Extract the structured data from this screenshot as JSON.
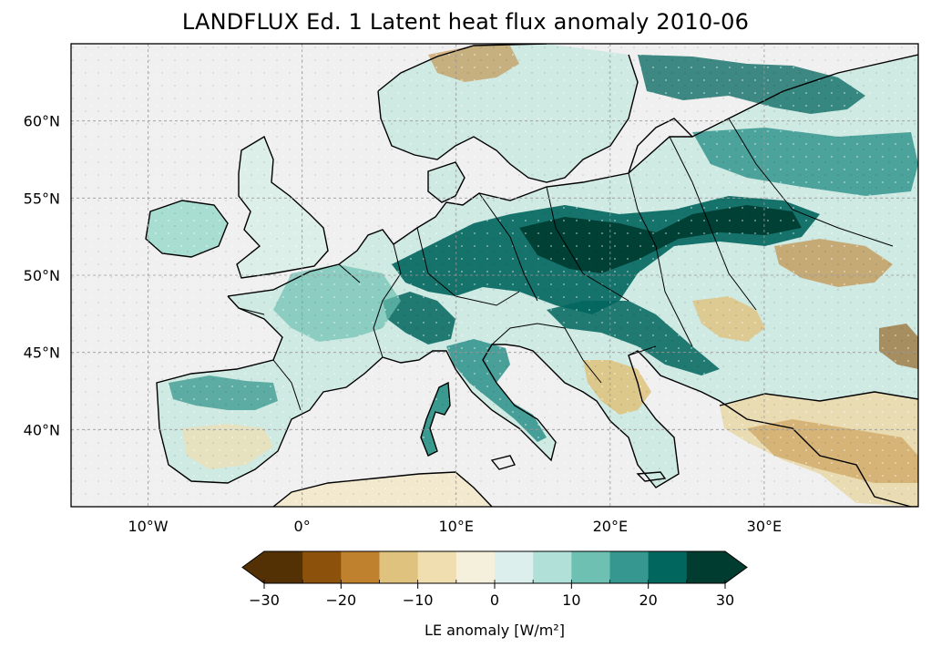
{
  "title": "LANDFLUX Ed. 1 Latent heat flux anomaly 2010-06",
  "map": {
    "region": "Europe",
    "projection": "PlateCarree",
    "lon_range": [
      -15,
      40
    ],
    "lat_range": [
      35,
      65
    ],
    "gridlines": true,
    "lon_ticks": [
      {
        "value": -10,
        "label": "10°W"
      },
      {
        "value": 0,
        "label": "0°"
      },
      {
        "value": 10,
        "label": "10°E"
      },
      {
        "value": 20,
        "label": "20°E"
      },
      {
        "value": 30,
        "label": "30°E"
      }
    ],
    "lat_ticks": [
      {
        "value": 60,
        "label": "60°N"
      },
      {
        "value": 55,
        "label": "55°N"
      },
      {
        "value": 50,
        "label": "50°N"
      },
      {
        "value": 45,
        "label": "45°N"
      },
      {
        "value": 40,
        "label": "40°N"
      }
    ],
    "colors": {
      "ocean": "#f0f0f0",
      "coast": "#000000"
    }
  },
  "colorbar": {
    "label": "LE anomaly [W/m²]",
    "levels": [
      -30,
      -25,
      -20,
      -15,
      -10,
      -5,
      0,
      5,
      10,
      15,
      20,
      25,
      30
    ],
    "tick_labels": [
      "−30",
      "−20",
      "−10",
      "0",
      "10",
      "20",
      "30"
    ],
    "tick_values": [
      -30,
      -20,
      -10,
      0,
      10,
      20,
      30
    ],
    "extend": "both",
    "colors": [
      "#543005",
      "#8c510a",
      "#bf812d",
      "#dfc27d",
      "#f0deb0",
      "#f5f0dc",
      "#ddefec",
      "#b0e0d8",
      "#6ec0b2",
      "#35978f",
      "#01665e",
      "#003c30"
    ],
    "under_color": "#543005",
    "over_color": "#003c30"
  }
}
